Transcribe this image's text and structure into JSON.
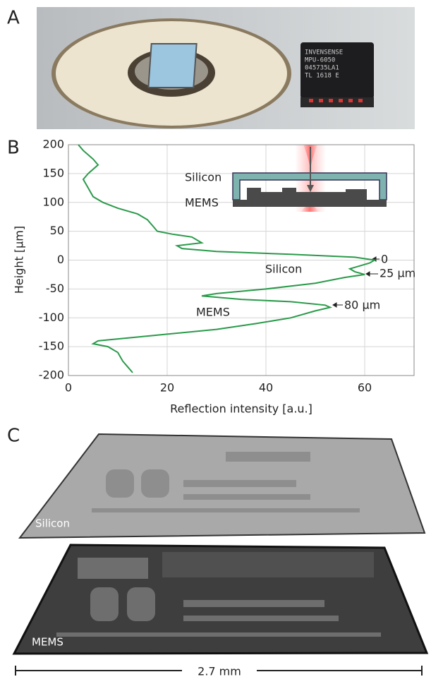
{
  "panels": [
    "A",
    "B",
    "C"
  ],
  "photo_a": {
    "chip_text": [
      "INVENSENSE",
      "MPU-6050",
      "045735LA1",
      "TL 1618 E"
    ]
  },
  "chart_data": {
    "type": "line",
    "xlabel": "Reflection intensity [a.u.]",
    "ylabel": "Height [µm]",
    "xlim": [
      0,
      70
    ],
    "ylim": [
      -200,
      200
    ],
    "xticks": [
      0,
      20,
      40,
      60
    ],
    "yticks": [
      200,
      150,
      100,
      50,
      0,
      -50,
      -100,
      -150,
      -200
    ],
    "grid": true,
    "color": "#2a9a4a",
    "x": [
      2,
      3,
      5,
      6,
      4,
      3,
      4,
      5,
      7,
      10,
      14,
      16,
      17,
      18,
      21,
      25,
      27,
      22,
      23,
      30,
      45,
      58,
      62,
      61,
      59,
      57,
      58,
      60,
      56,
      50,
      40,
      30,
      27,
      35,
      45,
      52,
      53,
      50,
      45,
      38,
      30,
      18,
      6,
      5,
      8,
      10,
      11,
      12,
      13
    ],
    "y": [
      200,
      190,
      175,
      165,
      150,
      140,
      125,
      110,
      100,
      90,
      80,
      70,
      60,
      50,
      45,
      40,
      30,
      25,
      20,
      15,
      10,
      5,
      0,
      -5,
      -10,
      -15,
      -20,
      -25,
      -30,
      -40,
      -50,
      -58,
      -62,
      -68,
      -72,
      -78,
      -82,
      -88,
      -100,
      -110,
      -120,
      -130,
      -140,
      -145,
      -150,
      -160,
      -175,
      -185,
      -195
    ],
    "annotations": [
      "Silicon",
      "MEMS",
      "0",
      "25 µm",
      "80 µm"
    ],
    "inset_labels": [
      "Silicon",
      "MEMS"
    ]
  },
  "figure_c": {
    "labels": [
      "Silicon",
      "MEMS"
    ],
    "scale_bar": "2.7 mm"
  }
}
